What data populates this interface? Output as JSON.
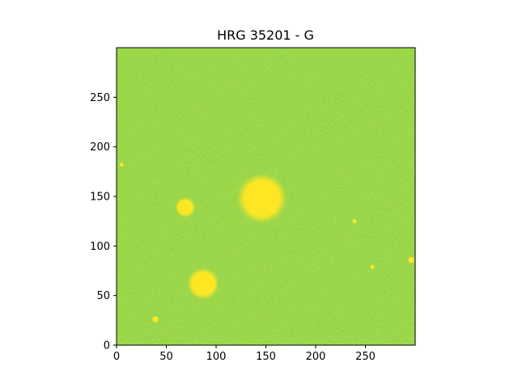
{
  "figure": {
    "title": "HRG 35201 - G"
  },
  "image_data": {
    "type": "image",
    "colormap": "viridis",
    "background_color": "#8fd33a",
    "source_color": "#fde725",
    "xlim": [
      0,
      300
    ],
    "ylim": [
      0,
      300
    ],
    "x_ticks": [
      0,
      50,
      100,
      150,
      200,
      250
    ],
    "y_ticks": [
      0,
      50,
      100,
      150,
      200,
      250
    ],
    "sources": [
      {
        "x": 146,
        "y": 148,
        "r": 25,
        "kind": "extended"
      },
      {
        "x": 87,
        "y": 62,
        "r": 16,
        "kind": "extended"
      },
      {
        "x": 69,
        "y": 139,
        "r": 10,
        "kind": "extended"
      },
      {
        "x": 39,
        "y": 26,
        "r": 3,
        "kind": "point"
      },
      {
        "x": 296,
        "y": 86,
        "r": 3,
        "kind": "point"
      },
      {
        "x": 239,
        "y": 125,
        "r": 2,
        "kind": "point"
      },
      {
        "x": 5,
        "y": 182,
        "r": 2,
        "kind": "point"
      },
      {
        "x": 257,
        "y": 79,
        "r": 2,
        "kind": "point"
      }
    ]
  }
}
